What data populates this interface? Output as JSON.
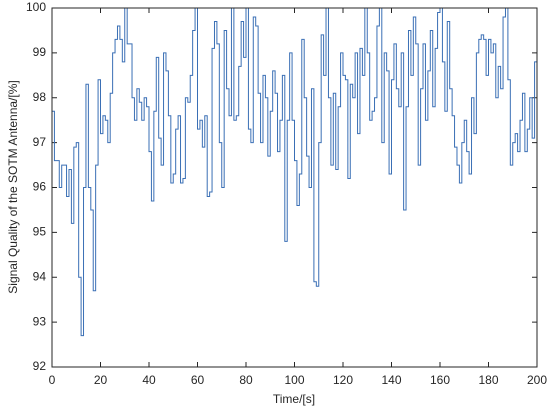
{
  "chart_data": {
    "type": "line",
    "step": "post",
    "xlabel": "Time/[s]",
    "ylabel": "Signal Quality of the SOTM Antenna/[%]",
    "xlim": [
      0,
      200
    ],
    "xticks": [
      0,
      20,
      40,
      60,
      80,
      100,
      120,
      140,
      160,
      180,
      200
    ],
    "ylim": [
      92,
      100
    ],
    "yticks": [
      92,
      93,
      94,
      95,
      96,
      97,
      98,
      99,
      100
    ],
    "grid": false,
    "x": [
      0,
      1,
      2,
      3,
      4,
      5,
      6,
      7,
      8,
      9,
      10,
      11,
      12,
      13,
      14,
      15,
      16,
      17,
      18,
      19,
      20,
      21,
      22,
      23,
      24,
      25,
      26,
      27,
      28,
      29,
      30,
      31,
      32,
      33,
      34,
      35,
      36,
      37,
      38,
      39,
      40,
      41,
      42,
      43,
      44,
      45,
      46,
      47,
      48,
      49,
      50,
      51,
      52,
      53,
      54,
      55,
      56,
      57,
      58,
      59,
      60,
      61,
      62,
      63,
      64,
      65,
      66,
      67,
      68,
      69,
      70,
      71,
      72,
      73,
      74,
      75,
      76,
      77,
      78,
      79,
      80,
      81,
      82,
      83,
      84,
      85,
      86,
      87,
      88,
      89,
      90,
      91,
      92,
      93,
      94,
      95,
      96,
      97,
      98,
      99,
      100,
      101,
      102,
      103,
      104,
      105,
      106,
      107,
      108,
      109,
      110,
      111,
      112,
      113,
      114,
      115,
      116,
      117,
      118,
      119,
      120,
      121,
      122,
      123,
      124,
      125,
      126,
      127,
      128,
      129,
      130,
      131,
      132,
      133,
      134,
      135,
      136,
      137,
      138,
      139,
      140,
      141,
      142,
      143,
      144,
      145,
      146,
      147,
      148,
      149,
      150,
      151,
      152,
      153,
      154,
      155,
      156,
      157,
      158,
      159,
      160,
      161,
      162,
      163,
      164,
      165,
      166,
      167,
      168,
      169,
      170,
      171,
      172,
      173,
      174,
      175,
      176,
      177,
      178,
      179,
      180,
      181,
      182,
      183,
      184,
      185,
      186,
      187,
      188,
      189,
      190,
      191,
      192,
      193,
      194,
      195,
      196,
      197,
      198,
      199,
      200
    ],
    "series": [
      {
        "color": "#3a6fb5",
        "values": [
          97.7,
          96.6,
          96.6,
          96.0,
          96.5,
          96.5,
          95.8,
          96.4,
          95.2,
          96.9,
          97.0,
          94.0,
          92.7,
          96.0,
          98.3,
          96.0,
          95.5,
          93.7,
          96.5,
          98.4,
          97.2,
          97.6,
          97.5,
          97.0,
          98.1,
          99.0,
          99.3,
          99.6,
          99.3,
          98.8,
          100,
          99.2,
          99.2,
          98.0,
          97.5,
          98.2,
          97.9,
          97.5,
          98.0,
          97.8,
          96.8,
          95.7,
          97.7,
          98.9,
          97.1,
          96.5,
          99.0,
          98.6,
          97.6,
          96.1,
          96.3,
          97.3,
          97.6,
          96.1,
          96.2,
          98.0,
          97.9,
          98.5,
          99.5,
          100,
          97.3,
          97.5,
          96.9,
          97.6,
          95.8,
          95.9,
          99.1,
          99.7,
          99.2,
          97.0,
          96.0,
          99.5,
          98.2,
          97.6,
          100,
          97.5,
          97.6,
          98.7,
          99.7,
          98.9,
          100,
          97.3,
          97.0,
          99.8,
          99.6,
          98.1,
          97.0,
          98.5,
          98.0,
          96.7,
          97.7,
          98.6,
          98.1,
          96.8,
          97.5,
          98.5,
          94.8,
          97.5,
          99.0,
          97.5,
          96.6,
          95.6,
          96.3,
          99.3,
          98.0,
          96.7,
          96.0,
          98.2,
          93.9,
          93.8,
          97.0,
          99.4,
          98.5,
          100,
          98.0,
          96.5,
          98.1,
          96.4,
          97.8,
          99.0,
          98.5,
          98.4,
          96.2,
          98.3,
          98.0,
          99.0,
          97.2,
          99.1,
          98.5,
          100,
          99.0,
          97.5,
          97.7,
          98.0,
          99.6,
          100,
          97.0,
          99.0,
          98.6,
          96.3,
          98.4,
          99.2,
          98.2,
          97.8,
          99.0,
          95.5,
          97.8,
          99.5,
          98.5,
          99.8,
          99.2,
          96.5,
          98.2,
          99.2,
          97.5,
          98.6,
          99.5,
          97.8,
          99.1,
          99.9,
          100,
          98.8,
          97.7,
          99.7,
          98.2,
          97.6,
          96.9,
          96.5,
          96.1,
          97.0,
          97.5,
          96.8,
          96.3,
          98.0,
          97.2,
          99.0,
          99.3,
          99.4,
          99.3,
          98.5,
          99.3,
          99.0,
          99.2,
          98.0,
          98.7,
          98.2,
          99.8,
          100,
          98.4,
          96.5,
          97.0,
          97.2,
          96.8,
          97.5,
          98.1,
          96.8,
          97.3,
          98.0,
          97.1,
          98.8,
          99.0
        ]
      }
    ]
  }
}
